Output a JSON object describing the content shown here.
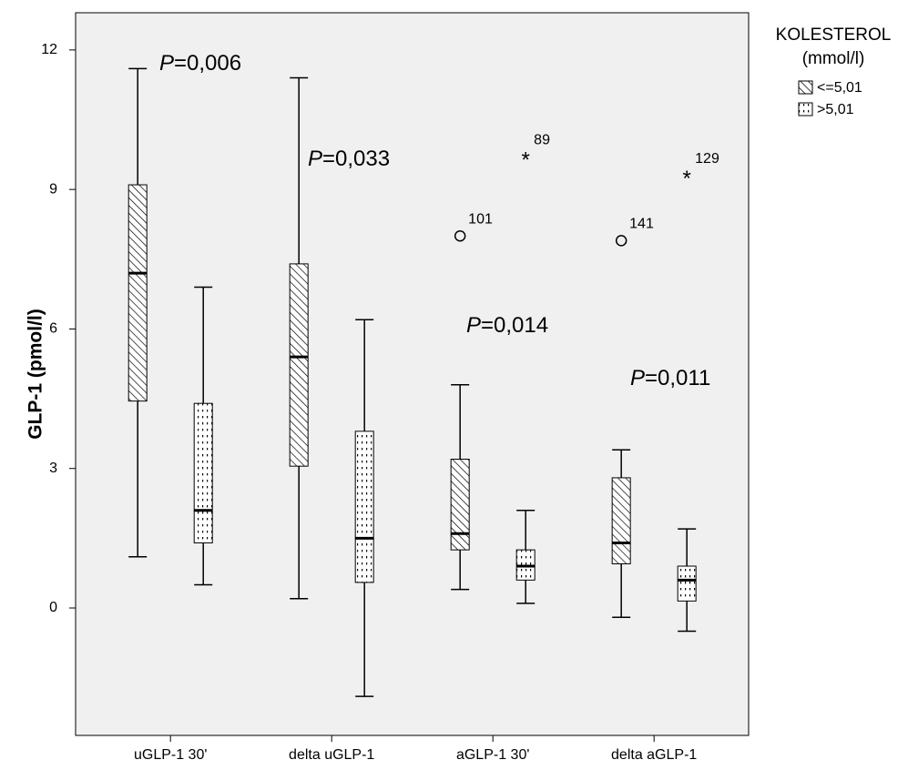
{
  "chart_data": {
    "type": "box",
    "ylabel": "GLP-1 (pmol/l)",
    "categories": [
      "uGLP-1 30'",
      "delta uGLP-1",
      "aGLP-1 30'",
      "delta aGLP-1"
    ],
    "ylim": [
      -2.74,
      12.8
    ],
    "yticks": [
      0,
      3,
      6,
      9,
      12
    ],
    "legend_title": [
      "KOLESTEROL",
      "(mmol/l)"
    ],
    "legend_position": "right",
    "series": [
      {
        "name": "<=5,01",
        "color": "#000000",
        "pattern": "hatch",
        "boxes": [
          {
            "low": 1.1,
            "q1": 4.45,
            "median": 7.2,
            "q3": 9.1,
            "high": 11.6
          },
          {
            "low": 0.2,
            "q1": 3.05,
            "median": 5.4,
            "q3": 7.4,
            "high": 11.4
          },
          {
            "low": 0.4,
            "q1": 1.25,
            "median": 1.6,
            "q3": 3.2,
            "high": 4.8
          },
          {
            "low": -0.2,
            "q1": 0.95,
            "median": 1.4,
            "q3": 2.8,
            "high": 3.4
          }
        ],
        "outliers": [
          null,
          null,
          {
            "value": 8.0,
            "label": "101",
            "marker": "circle"
          },
          {
            "value": 7.9,
            "label": "141",
            "marker": "circle"
          }
        ]
      },
      {
        "name": ">5,01",
        "color": "#000000",
        "pattern": "dots",
        "boxes": [
          {
            "low": 0.5,
            "q1": 1.4,
            "median": 2.1,
            "q3": 4.4,
            "high": 6.9
          },
          {
            "low": -1.9,
            "q1": 0.55,
            "median": 1.5,
            "q3": 3.8,
            "high": 6.2
          },
          {
            "low": 0.1,
            "q1": 0.6,
            "median": 0.9,
            "q3": 1.25,
            "high": 2.1
          },
          {
            "low": -0.5,
            "q1": 0.15,
            "median": 0.6,
            "q3": 0.9,
            "high": 1.7
          }
        ],
        "outliers": [
          null,
          null,
          {
            "value": 9.7,
            "label": "89",
            "marker": "star"
          },
          {
            "value": 9.3,
            "label": "129",
            "marker": "star"
          }
        ]
      }
    ],
    "annotations": [
      "P=0,006",
      "P=0,033",
      "P=0,014",
      "P=0,011"
    ]
  }
}
